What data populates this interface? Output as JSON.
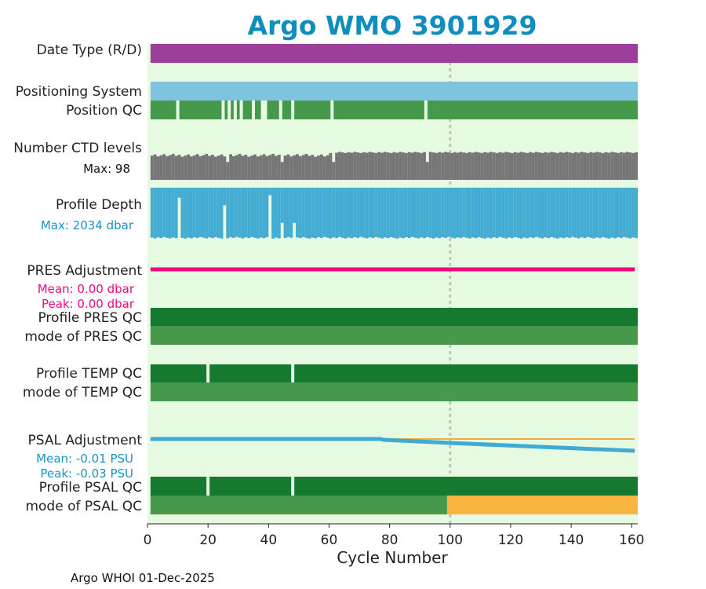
{
  "chart_data": {
    "type": "table",
    "title": "Argo WMO 3901929",
    "xlabel": "Cycle Number",
    "xlim": [
      0,
      162
    ],
    "xticks": [
      0,
      20,
      40,
      60,
      80,
      100,
      120,
      140,
      160
    ],
    "reference_cycle": 100,
    "footer": "Argo WHOI 01-Dec-2025",
    "colors": {
      "background": "#e6f9e1",
      "title": "#0f8dbc",
      "date_type": "#9b3f9a",
      "positioning": "#7ec4df",
      "qc_good": "#46994a",
      "qc_dark": "#157a30",
      "qc_probably_bad": "#f9b53f",
      "ctd": "#767676",
      "depth": "#44abd2",
      "pres_adj": "#ea0a7d",
      "psal_adj": "#40a9d4",
      "psal_ref": "#f0b041",
      "gap": "#e6f9e1"
    },
    "rows": {
      "date_type": {
        "label": "Date Type (R/D)",
        "from": 1,
        "to": 162
      },
      "positioning_system": {
        "label": "Positioning System",
        "from": 1,
        "to": 162
      },
      "position_qc": {
        "label": "Position QC",
        "from": 1,
        "to": 162,
        "gaps": [
          10,
          25,
          27,
          29,
          31,
          35,
          38,
          39,
          44,
          48,
          61,
          92
        ]
      },
      "ctd_levels": {
        "label": "Number CTD levels",
        "max_label": "Max: 98",
        "max": 98
      },
      "profile_depth": {
        "label": "Profile Depth",
        "max_label": "Max: 2034 dbar",
        "max": 2034
      },
      "pres_adjustment": {
        "label": "PRES Adjustment",
        "mean": "Mean: 0.00 dbar",
        "peak": "Peak: 0.00 dbar",
        "values_dbar": [
          [
            1,
            0.0
          ],
          [
            161,
            0.0
          ]
        ]
      },
      "profile_pres_qc": {
        "label": "Profile PRES QC",
        "from": 1,
        "to": 162
      },
      "mode_pres_qc": {
        "label": "mode of PRES QC",
        "from": 1,
        "to": 162
      },
      "profile_temp_qc": {
        "label": "Profile TEMP QC",
        "from": 1,
        "to": 162,
        "gaps": [
          20,
          48
        ]
      },
      "mode_temp_qc": {
        "label": "mode of TEMP QC",
        "from": 1,
        "to": 162
      },
      "psal_adjustment": {
        "label": "PSAL Adjustment",
        "mean": "Mean: -0.01 PSU",
        "peak": "Peak: -0.03 PSU",
        "values_psu": [
          [
            1,
            0.0
          ],
          [
            77,
            0.0
          ],
          [
            78,
            -0.002
          ],
          [
            100,
            -0.01
          ],
          [
            130,
            -0.02
          ],
          [
            161,
            -0.03
          ]
        ]
      },
      "profile_psal_qc": {
        "label": "Profile PSAL QC",
        "from": 1,
        "to": 162,
        "gaps": [
          20,
          48
        ]
      },
      "mode_psal_qc": {
        "label": "mode of PSAL QC",
        "good_to": 99,
        "probably_bad_from": 99,
        "to": 162
      }
    }
  }
}
